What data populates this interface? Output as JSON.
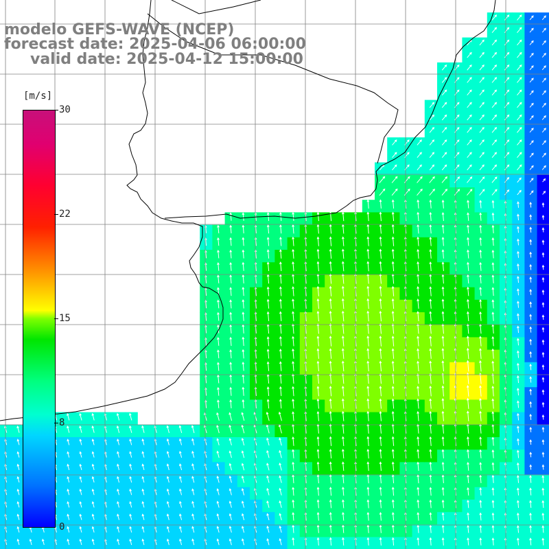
{
  "title": {
    "line1": "modelo GEFS-WAVE (NCEP)",
    "line2": "forecast date: 2025-04-06 06:00:00",
    "line3": "valid date: 2025-04-12 15:00:00"
  },
  "colorbar": {
    "unit": "[m/s]",
    "ticks": [
      "30",
      "22",
      "15",
      "8",
      "0"
    ],
    "colors": [
      "#0000ff",
      "#0073ff",
      "#00d6ff",
      "#00ffd0",
      "#00ff7f",
      "#00e600",
      "#7fff00",
      "#ffff00",
      "#ff8c00",
      "#ff2000",
      "#e00070"
    ]
  },
  "map": {
    "land_color": "#ffffff",
    "grid_color": "#808080",
    "coast_color": "#000000",
    "arrow_color": "#ffffff",
    "grid": "on",
    "field": "wind speed with direction arrows",
    "arrow_direction": "mostly toward north / north-east",
    "max_region": "yellow core east of center, ~15 m/s"
  }
}
